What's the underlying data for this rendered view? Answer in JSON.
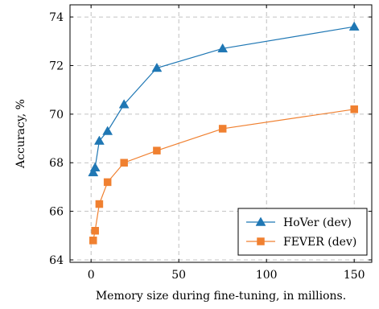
{
  "chart_data": {
    "type": "line",
    "xlabel": "Memory size during fine-tuning, in millions.",
    "ylabel": "Accuracy, %",
    "xlim": [
      -12,
      160
    ],
    "ylim": [
      63.9,
      74.5
    ],
    "xticks": [
      0,
      50,
      100,
      150
    ],
    "yticks": [
      64,
      66,
      68,
      70,
      72,
      74
    ],
    "grid": true,
    "legend_position": "bottom-right",
    "series": [
      {
        "name": "HoVer (dev)",
        "color": "#1f77b4",
        "marker": "triangle",
        "x": [
          1.2,
          2.3,
          4.7,
          9.4,
          18.8,
          37.5,
          75,
          150
        ],
        "y": [
          67.6,
          67.8,
          68.9,
          69.3,
          70.4,
          71.9,
          72.7,
          73.6
        ]
      },
      {
        "name": "FEVER (dev)",
        "color": "#f08030",
        "marker": "square",
        "x": [
          1.2,
          2.3,
          4.7,
          9.4,
          18.8,
          37.5,
          75,
          150
        ],
        "y": [
          64.8,
          65.2,
          66.3,
          67.2,
          68.0,
          68.5,
          69.4,
          70.2
        ]
      }
    ]
  }
}
